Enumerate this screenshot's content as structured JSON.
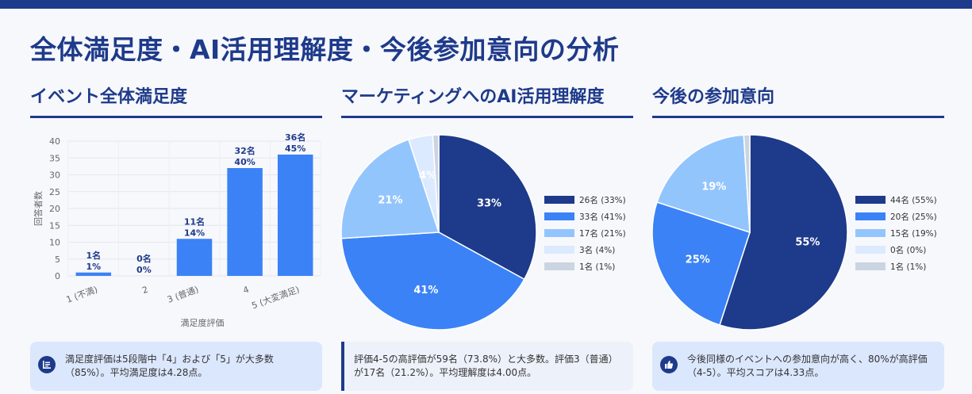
{
  "page": {
    "title": "全体満足度・AI活用理解度・今後参加意向の分析"
  },
  "sections": [
    {
      "title": "イベント全体満足度"
    },
    {
      "title": "マーケティングへのAI活用理解度"
    },
    {
      "title": "今後の参加意向"
    }
  ],
  "notes": [
    {
      "icon": "list-icon",
      "text": "満足度評価は5段階中「4」および「5」が大多数（85%）。平均満足度は4.28点。"
    },
    {
      "icon": "",
      "text": "評価4-5の高評価が59名（73.8%）と大多数。評価3（普通）が17名（21.2%）。平均理解度は4.00点。"
    },
    {
      "icon": "thumbs-up-icon",
      "text": "今後同様のイベントへの参加意向が高く、80%が高評価（4-5）。平均スコアは4.33点。"
    }
  ],
  "colors": {
    "navy": "#1e3a8a",
    "blue": "#3b82f6",
    "light_blue": "#93c5fd",
    "pale_blue": "#dbeafe",
    "gray": "#cbd5e1"
  },
  "chart_data": [
    {
      "type": "bar",
      "categories": [
        "1 (不満)",
        "2",
        "3 (普通)",
        "4",
        "5 (大変満足)"
      ],
      "values": [
        1,
        0,
        11,
        32,
        36
      ],
      "labels_count": [
        "1名",
        "0名",
        "11名",
        "32名",
        "36名"
      ],
      "labels_pct": [
        "1%",
        "0%",
        "14%",
        "40%",
        "45%"
      ],
      "xlabel": "満足度評価",
      "ylabel": "回答者数",
      "ylim": [
        0,
        40
      ],
      "yticks": [
        0,
        5,
        10,
        15,
        20,
        25,
        30,
        35,
        40
      ],
      "bar_color": "#3b82f6"
    },
    {
      "type": "pie",
      "slices": [
        {
          "legend": "26名 (33%)",
          "label": "33%",
          "value": 33,
          "color": "#1e3a8a"
        },
        {
          "legend": "33名 (41%)",
          "label": "41%",
          "value": 41,
          "color": "#3b82f6"
        },
        {
          "legend": "17名 (21%)",
          "label": "21%",
          "value": 21,
          "color": "#93c5fd"
        },
        {
          "legend": "3名 (4%)",
          "label": "4%",
          "value": 4,
          "color": "#dbeafe"
        },
        {
          "legend": "1名 (1%)",
          "label": "",
          "value": 1,
          "color": "#cbd5e1"
        }
      ]
    },
    {
      "type": "pie",
      "slices": [
        {
          "legend": "44名 (55%)",
          "label": "55%",
          "value": 55,
          "color": "#1e3a8a"
        },
        {
          "legend": "20名 (25%)",
          "label": "25%",
          "value": 25,
          "color": "#3b82f6"
        },
        {
          "legend": "15名 (19%)",
          "label": "19%",
          "value": 19,
          "color": "#93c5fd"
        },
        {
          "legend": "0名 (0%)",
          "label": "",
          "value": 0,
          "color": "#dbeafe"
        },
        {
          "legend": "1名 (1%)",
          "label": "",
          "value": 1,
          "color": "#cbd5e1"
        }
      ]
    }
  ]
}
